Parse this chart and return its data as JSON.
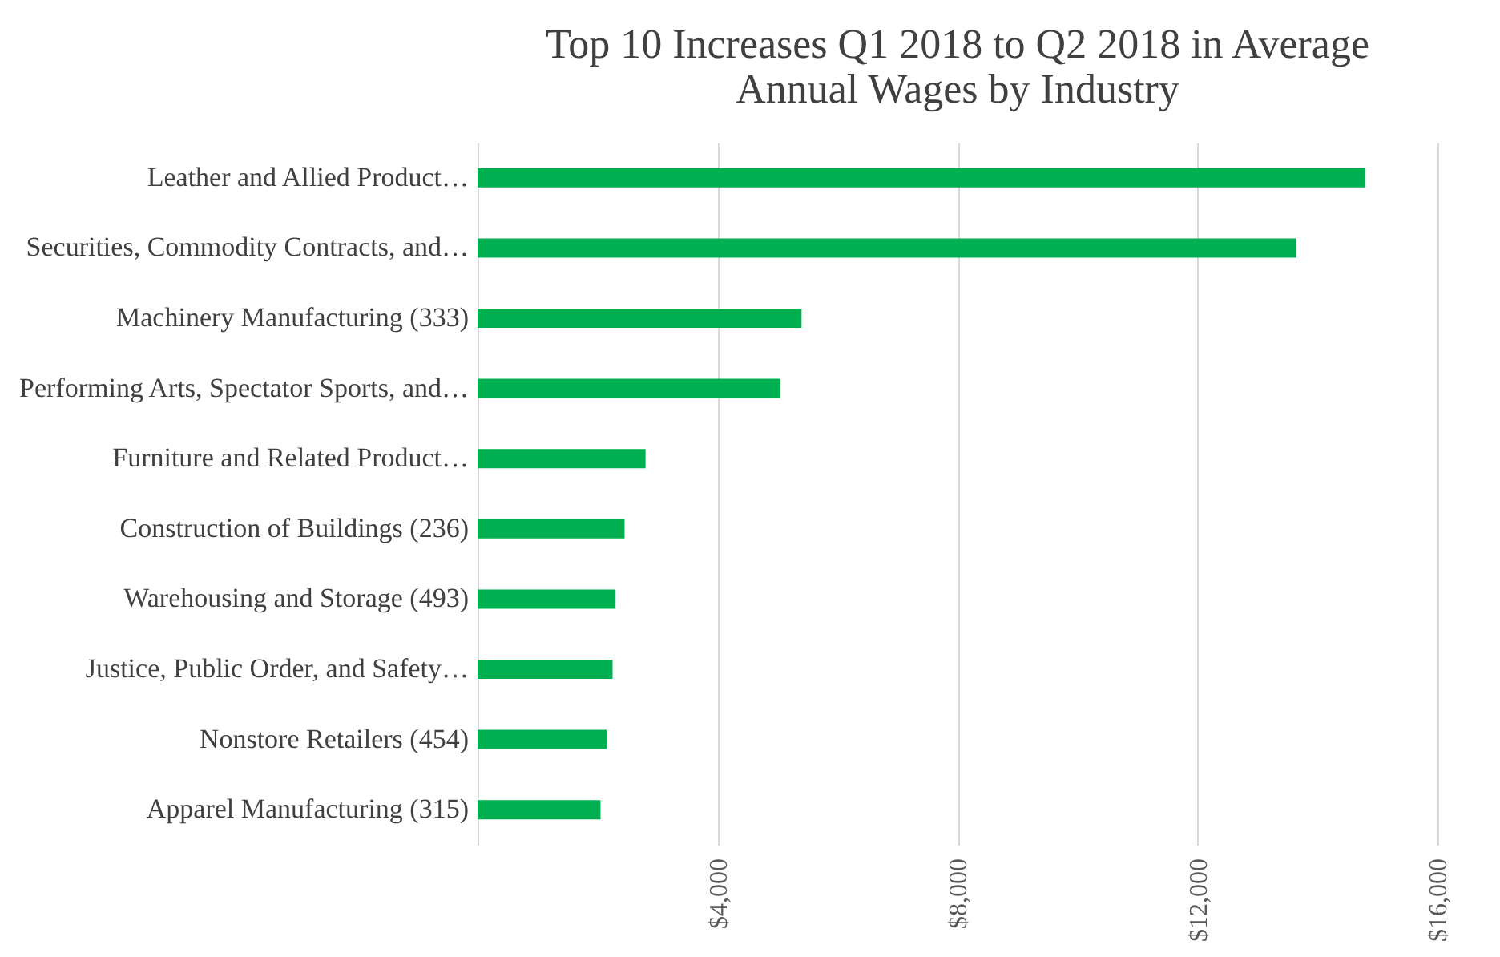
{
  "chart_data": {
    "type": "bar",
    "orientation": "horizontal",
    "title": [
      "Top 10 Increases Q1 2018 to Q2 2018 in Average",
      "Annual Wages by Industry"
    ],
    "categories": [
      "Leather and Allied Product…",
      "Securities, Commodity Contracts, and…",
      "Machinery Manufacturing (333)",
      "Performing Arts, Spectator Sports, and…",
      "Furniture and Related Product…",
      "Construction of Buildings (236)",
      "Warehousing and Storage (493)",
      "Justice, Public Order, and Safety…",
      "Nonstore Retailers  (454)",
      "Apparel Manufacturing (315)"
    ],
    "values": [
      14800,
      13650,
      5400,
      5050,
      2800,
      2450,
      2300,
      2250,
      2150,
      2050
    ],
    "color": "#00b050",
    "xlim": [
      0,
      16000
    ],
    "xticks": [
      {
        "value": 0,
        "label": null
      },
      {
        "value": 4000,
        "label": "$4,000"
      },
      {
        "value": 8000,
        "label": "$8,000"
      },
      {
        "value": 12000,
        "label": "$12,000"
      },
      {
        "value": 16000,
        "label": "$16,000"
      }
    ],
    "grid": "x"
  }
}
